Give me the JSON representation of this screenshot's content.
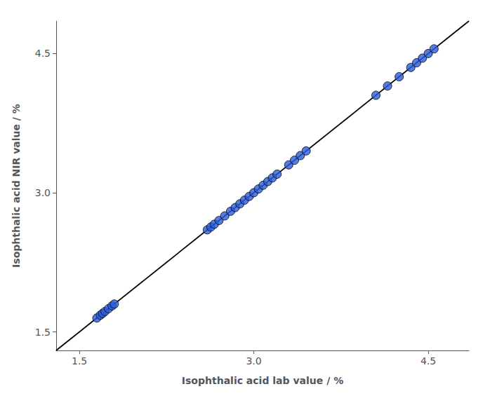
{
  "chart_data": {
    "type": "scatter",
    "xlabel": "Isophthalic acid lab value / %",
    "ylabel": "Isophthalic acid NIR value / %",
    "series": [
      {
        "type": "line",
        "color": "#000000",
        "x": [
          1.3,
          4.85
        ],
        "values": [
          1.3,
          4.85
        ]
      },
      {
        "type": "scatter",
        "color": "#2b5ddb",
        "x": [
          1.65,
          1.68,
          1.7,
          1.72,
          1.75,
          1.78,
          1.8,
          2.6,
          2.63,
          2.66,
          2.7,
          2.75,
          2.8,
          2.84,
          2.88,
          2.92,
          2.96,
          3.0,
          3.04,
          3.08,
          3.12,
          3.16,
          3.2,
          3.3,
          3.35,
          3.4,
          3.45,
          4.05,
          4.15,
          4.25,
          4.35,
          4.4,
          4.45,
          4.5,
          4.55
        ],
        "values": [
          1.65,
          1.68,
          1.7,
          1.72,
          1.75,
          1.78,
          1.8,
          2.6,
          2.63,
          2.66,
          2.7,
          2.75,
          2.8,
          2.84,
          2.88,
          2.92,
          2.96,
          3.0,
          3.04,
          3.08,
          3.12,
          3.16,
          3.2,
          3.3,
          3.35,
          3.4,
          3.45,
          4.05,
          4.15,
          4.25,
          4.35,
          4.4,
          4.45,
          4.5,
          4.55
        ]
      }
    ],
    "xlim": [
      1.3,
      4.85
    ],
    "ylim": [
      1.3,
      4.85
    ],
    "xticks": [
      1.5,
      {
        "value": 3,
        "label": "3.0"
      },
      4.5
    ],
    "yticks": [
      1.5,
      {
        "value": 3,
        "label": "3.0"
      },
      4.5
    ],
    "grid": false
  }
}
